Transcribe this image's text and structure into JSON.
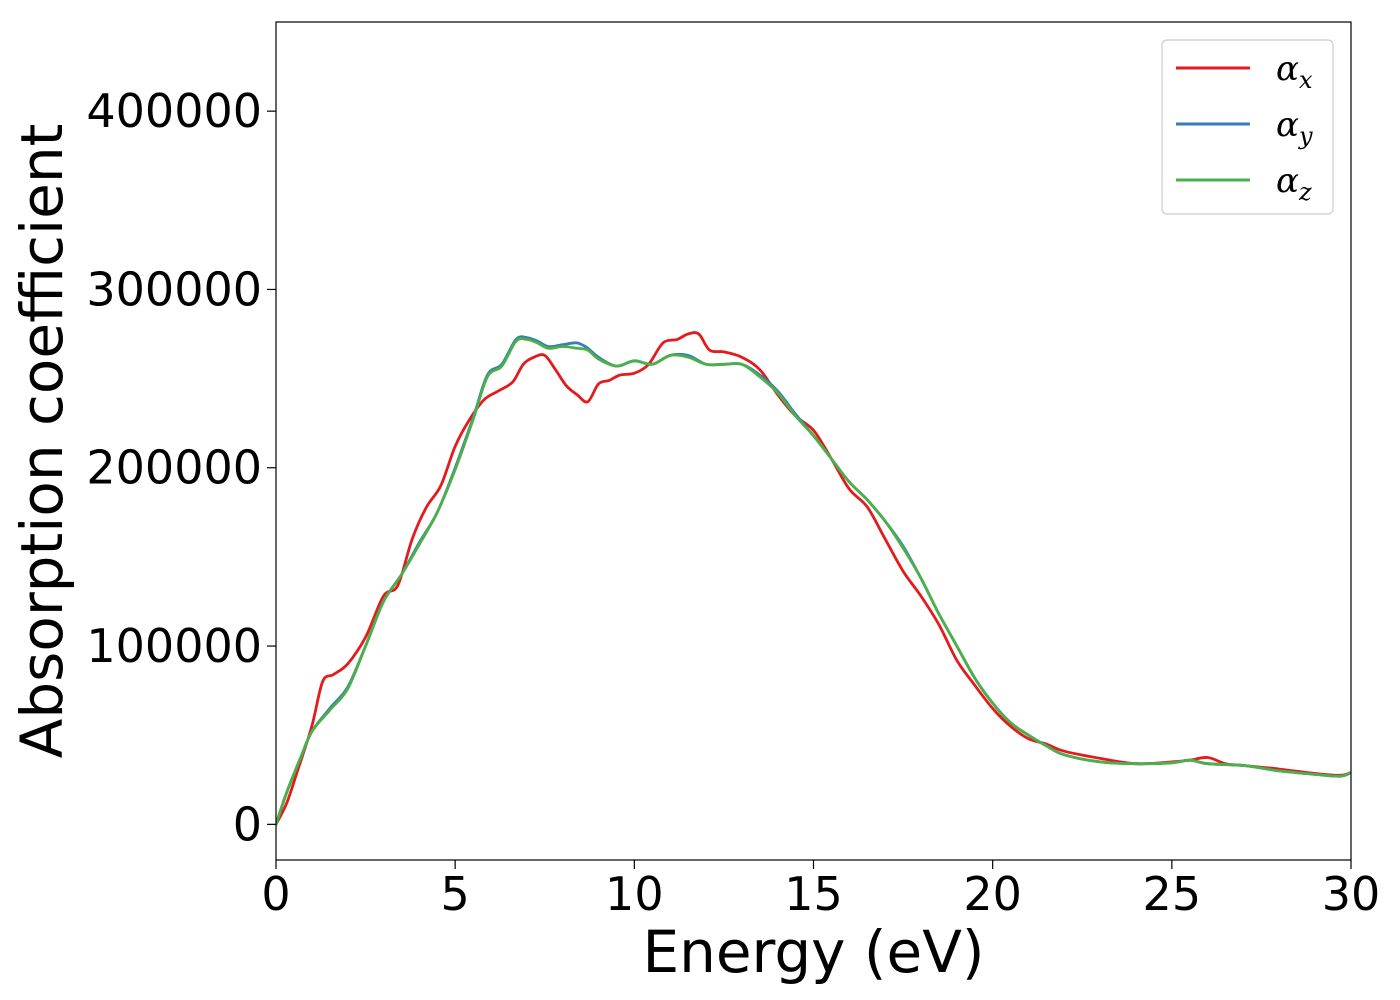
{
  "chart_data": {
    "type": "line",
    "xlabel": "Energy (eV)",
    "ylabel": "Absorption coefficient",
    "xlim": [
      0,
      30
    ],
    "ylim": [
      -20000,
      450000
    ],
    "xticks": [
      0,
      5,
      10,
      15,
      20,
      25,
      30
    ],
    "yticks": [
      0,
      100000,
      200000,
      300000,
      400000
    ],
    "xtick_labels": [
      "0",
      "5",
      "10",
      "15",
      "20",
      "25",
      "30"
    ],
    "ytick_labels": [
      "0",
      "100000",
      "200000",
      "300000",
      "400000"
    ],
    "grid": false,
    "legend_position": "top-right",
    "series": [
      {
        "name": "α_x",
        "legend_base": "α",
        "legend_sub": "x",
        "color": "#e41a1c",
        "points": [
          [
            0,
            0
          ],
          [
            0.3,
            12000
          ],
          [
            0.6,
            30000
          ],
          [
            1.0,
            55000
          ],
          [
            1.3,
            80000
          ],
          [
            1.6,
            84000
          ],
          [
            2.0,
            90000
          ],
          [
            2.5,
            105000
          ],
          [
            3.0,
            128000
          ],
          [
            3.4,
            134000
          ],
          [
            3.8,
            160000
          ],
          [
            4.2,
            178000
          ],
          [
            4.6,
            190000
          ],
          [
            5.0,
            212000
          ],
          [
            5.4,
            227000
          ],
          [
            5.8,
            238000
          ],
          [
            6.2,
            243000
          ],
          [
            6.6,
            248000
          ],
          [
            6.9,
            258000
          ],
          [
            7.2,
            262000
          ],
          [
            7.5,
            263000
          ],
          [
            7.8,
            255000
          ],
          [
            8.1,
            246000
          ],
          [
            8.4,
            241000
          ],
          [
            8.7,
            237000
          ],
          [
            9.0,
            247000
          ],
          [
            9.3,
            249000
          ],
          [
            9.6,
            252000
          ],
          [
            10.0,
            253000
          ],
          [
            10.4,
            258000
          ],
          [
            10.8,
            270000
          ],
          [
            11.2,
            272000
          ],
          [
            11.5,
            275000
          ],
          [
            11.8,
            275000
          ],
          [
            12.1,
            266000
          ],
          [
            12.5,
            265000
          ],
          [
            13.0,
            262000
          ],
          [
            13.5,
            255000
          ],
          [
            14.0,
            241000
          ],
          [
            14.5,
            229000
          ],
          [
            15.0,
            221000
          ],
          [
            15.5,
            205000
          ],
          [
            16.0,
            188000
          ],
          [
            16.5,
            178000
          ],
          [
            17.0,
            160000
          ],
          [
            17.5,
            142000
          ],
          [
            18.0,
            128000
          ],
          [
            18.5,
            112000
          ],
          [
            19.0,
            92000
          ],
          [
            19.5,
            78000
          ],
          [
            20.0,
            65000
          ],
          [
            20.5,
            55000
          ],
          [
            21.0,
            48000
          ],
          [
            21.5,
            45000
          ],
          [
            22.0,
            41000
          ],
          [
            23.0,
            37000
          ],
          [
            24.0,
            34000
          ],
          [
            25.0,
            35000
          ],
          [
            25.5,
            36000
          ],
          [
            26.0,
            37500
          ],
          [
            26.5,
            34000
          ],
          [
            27.0,
            33000
          ],
          [
            28.0,
            31000
          ],
          [
            29.0,
            28500
          ],
          [
            29.7,
            27500
          ],
          [
            30.0,
            29000
          ]
        ]
      },
      {
        "name": "α_y",
        "legend_base": "α",
        "legend_sub": "y",
        "color": "#377eb8",
        "points": [
          [
            0,
            0
          ],
          [
            0.3,
            18000
          ],
          [
            0.7,
            38000
          ],
          [
            1.0,
            52000
          ],
          [
            1.5,
            65000
          ],
          [
            2.0,
            77000
          ],
          [
            2.5,
            100000
          ],
          [
            3.0,
            125000
          ],
          [
            3.5,
            140000
          ],
          [
            4.0,
            158000
          ],
          [
            4.5,
            175000
          ],
          [
            5.0,
            200000
          ],
          [
            5.5,
            228000
          ],
          [
            5.9,
            252000
          ],
          [
            6.3,
            258000
          ],
          [
            6.7,
            272000
          ],
          [
            7.0,
            273000
          ],
          [
            7.3,
            271000
          ],
          [
            7.6,
            268000
          ],
          [
            8.0,
            269000
          ],
          [
            8.4,
            270000
          ],
          [
            8.7,
            267000
          ],
          [
            9.0,
            262000
          ],
          [
            9.5,
            257000
          ],
          [
            10.0,
            260000
          ],
          [
            10.5,
            258000
          ],
          [
            11.0,
            263000
          ],
          [
            11.5,
            263000
          ],
          [
            12.0,
            258000
          ],
          [
            12.5,
            258000
          ],
          [
            13.0,
            258000
          ],
          [
            13.5,
            252000
          ],
          [
            14.0,
            243000
          ],
          [
            14.5,
            230000
          ],
          [
            15.0,
            218000
          ],
          [
            15.5,
            205000
          ],
          [
            16.0,
            192000
          ],
          [
            16.5,
            182000
          ],
          [
            17.0,
            170000
          ],
          [
            17.5,
            156000
          ],
          [
            18.0,
            138000
          ],
          [
            18.5,
            118000
          ],
          [
            19.0,
            100000
          ],
          [
            19.5,
            82000
          ],
          [
            20.0,
            68000
          ],
          [
            20.5,
            57000
          ],
          [
            21.0,
            50000
          ],
          [
            21.5,
            44000
          ],
          [
            22.0,
            39000
          ],
          [
            23.0,
            35000
          ],
          [
            24.0,
            34000
          ],
          [
            25.0,
            34500
          ],
          [
            25.5,
            36000
          ],
          [
            26.0,
            34000
          ],
          [
            27.0,
            33000
          ],
          [
            28.0,
            30000
          ],
          [
            29.0,
            28000
          ],
          [
            29.7,
            27000
          ],
          [
            30.0,
            29000
          ]
        ]
      },
      {
        "name": "α_z",
        "legend_base": "α",
        "legend_sub": "z",
        "color": "#4daf4a",
        "points": [
          [
            0,
            0
          ],
          [
            0.3,
            18000
          ],
          [
            0.7,
            38000
          ],
          [
            1.0,
            52000
          ],
          [
            1.5,
            64000
          ],
          [
            2.0,
            76000
          ],
          [
            2.5,
            100000
          ],
          [
            3.0,
            125000
          ],
          [
            3.5,
            140000
          ],
          [
            4.0,
            157000
          ],
          [
            4.5,
            175000
          ],
          [
            5.0,
            199000
          ],
          [
            5.5,
            227000
          ],
          [
            5.9,
            251000
          ],
          [
            6.3,
            257000
          ],
          [
            6.7,
            271000
          ],
          [
            7.0,
            272000
          ],
          [
            7.3,
            270000
          ],
          [
            7.6,
            267000
          ],
          [
            8.0,
            268000
          ],
          [
            8.4,
            267000
          ],
          [
            8.7,
            266000
          ],
          [
            9.0,
            261000
          ],
          [
            9.5,
            257000
          ],
          [
            10.0,
            260000
          ],
          [
            10.5,
            258000
          ],
          [
            11.0,
            263000
          ],
          [
            11.5,
            262000
          ],
          [
            12.0,
            258000
          ],
          [
            12.5,
            258000
          ],
          [
            13.0,
            258000
          ],
          [
            13.5,
            251000
          ],
          [
            14.0,
            242000
          ],
          [
            14.5,
            229000
          ],
          [
            15.0,
            218000
          ],
          [
            15.5,
            205000
          ],
          [
            16.0,
            192000
          ],
          [
            16.5,
            182000
          ],
          [
            17.0,
            170000
          ],
          [
            17.5,
            155000
          ],
          [
            18.0,
            138000
          ],
          [
            18.5,
            118000
          ],
          [
            19.0,
            100000
          ],
          [
            19.5,
            82000
          ],
          [
            20.0,
            68000
          ],
          [
            20.5,
            57000
          ],
          [
            21.0,
            50000
          ],
          [
            21.5,
            44000
          ],
          [
            22.0,
            39000
          ],
          [
            23.0,
            35000
          ],
          [
            24.0,
            34000
          ],
          [
            25.0,
            34500
          ],
          [
            25.5,
            36000
          ],
          [
            26.0,
            34000
          ],
          [
            27.0,
            33000
          ],
          [
            28.0,
            30000
          ],
          [
            29.0,
            28000
          ],
          [
            29.7,
            27000
          ],
          [
            30.0,
            29000
          ]
        ]
      }
    ]
  }
}
